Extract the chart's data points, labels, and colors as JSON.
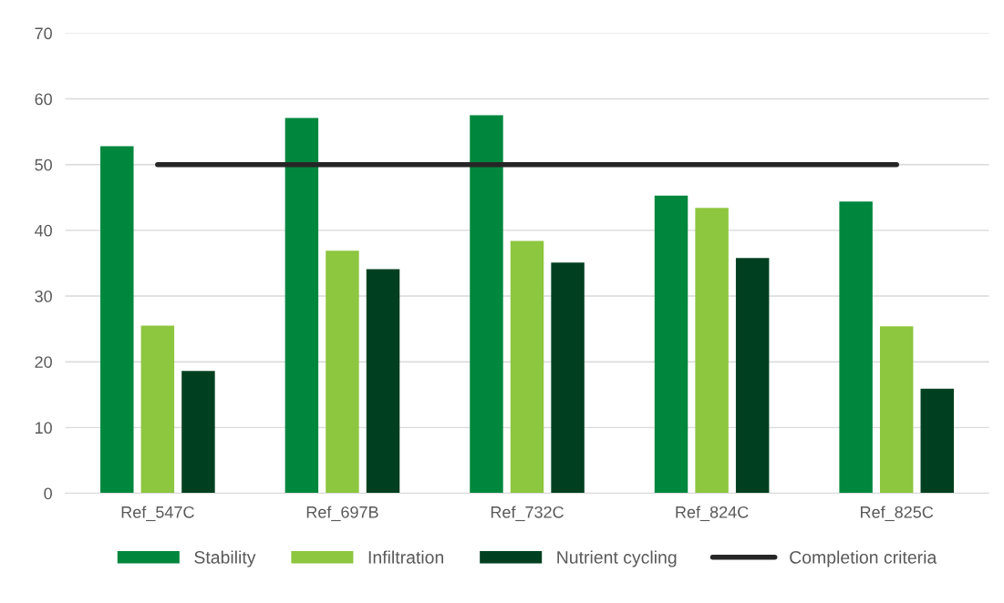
{
  "chart_data": {
    "type": "bar",
    "categories": [
      "Ref_547C",
      "Ref_697B",
      "Ref_732C",
      "Ref_824C",
      "Ref_825C"
    ],
    "series": [
      {
        "name": "Stability",
        "color": "#00873e",
        "values": [
          52.8,
          57.1,
          57.5,
          45.3,
          44.4
        ]
      },
      {
        "name": "Infiltration",
        "color": "#8dc63f",
        "values": [
          25.5,
          36.9,
          38.4,
          43.4,
          25.4
        ]
      },
      {
        "name": "Nutrient cycling",
        "color": "#004020",
        "values": [
          18.6,
          34.1,
          35.1,
          35.8,
          15.9
        ]
      },
      {
        "name": "Completion criteria",
        "type": "line",
        "color": "#262626",
        "values": [
          50,
          50,
          50,
          50,
          50
        ]
      }
    ],
    "ylim": [
      0,
      70
    ],
    "yticks": [
      0,
      10,
      20,
      30,
      40,
      50,
      60,
      70
    ],
    "grid": "y",
    "legend": "bottom"
  }
}
